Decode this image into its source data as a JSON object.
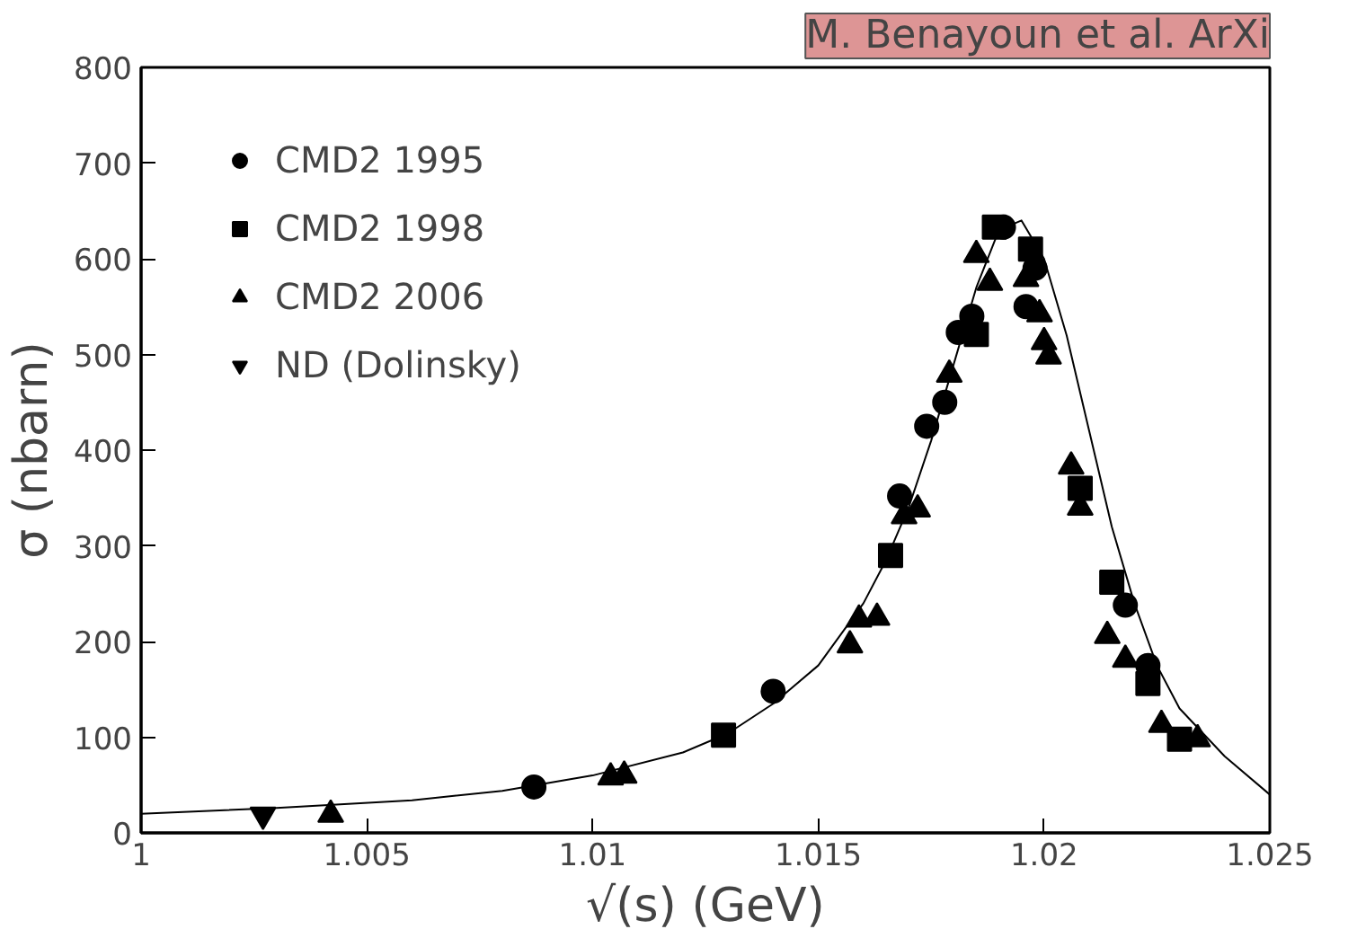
{
  "chart_data": {
    "type": "scatter",
    "title": "M. Benayoun et al. ArXi",
    "xlabel": "√(s) (GeV)",
    "ylabel": "σ (nbarn)",
    "xlim": [
      1,
      1.025
    ],
    "xticks": [
      1,
      1.005,
      1.01,
      1.015,
      1.02,
      1.025
    ],
    "ylim": [
      0,
      800
    ],
    "yticks": [
      0,
      100,
      200,
      300,
      400,
      500,
      600,
      700,
      800
    ],
    "grid": false,
    "legend": "top left",
    "series": [
      {
        "name": "CMD2 1995",
        "color": "#000000",
        "marker": "circle",
        "x": [
          1.0087,
          1.014,
          1.0168,
          1.0218,
          1.0223,
          1.0174,
          1.0178,
          1.0181,
          1.0184,
          1.0191,
          1.0196,
          1.0198
        ],
        "values": [
          48,
          148,
          352,
          238,
          175,
          425,
          450,
          523,
          540,
          633,
          550,
          590
        ]
      },
      {
        "name": "CMD2 1998",
        "color": "#000000",
        "marker": "square",
        "x": [
          1.0129,
          1.0166,
          1.0185,
          1.0189,
          1.0197,
          1.0208,
          1.0215,
          1.0223,
          1.023
        ],
        "values": [
          102,
          290,
          521,
          633,
          610,
          360,
          262,
          156,
          98
        ]
      },
      {
        "name": "CMD2 2006",
        "color": "#000000",
        "marker": "triangle",
        "x": [
          1.0042,
          1.0104,
          1.0107,
          1.0157,
          1.0159,
          1.0163,
          1.0169,
          1.0172,
          1.0179,
          1.0185,
          1.0188,
          1.0196,
          1.0199,
          1.02,
          1.0201,
          1.0206,
          1.0208,
          1.0214,
          1.0218,
          1.0226,
          1.0234
        ],
        "values": [
          19,
          58,
          60,
          196,
          223,
          225,
          331,
          338,
          479,
          604,
          575,
          579,
          542,
          513,
          498,
          383,
          340,
          206,
          181,
          113,
          98
        ]
      },
      {
        "name": "ND (Dolinsky)",
        "color": "#000000",
        "marker": "triangle_down",
        "x": [
          1.0027
        ],
        "values": [
          19
        ]
      },
      {
        "type": "line",
        "color": "#000000",
        "line_style": "solid",
        "x": [
          1.0,
          1.003,
          1.006,
          1.008,
          1.01,
          1.012,
          1.013,
          1.014,
          1.015,
          1.016,
          1.0165,
          1.017,
          1.0175,
          1.018,
          1.0185,
          1.019,
          1.0195,
          1.02,
          1.0205,
          1.021,
          1.0215,
          1.022,
          1.0225,
          1.023,
          1.024,
          1.025
        ],
        "values": [
          20,
          26,
          34,
          44,
          60,
          84,
          104,
          135,
          175,
          240,
          285,
          340,
          410,
          490,
          570,
          630,
          640,
          600,
          520,
          420,
          320,
          240,
          175,
          130,
          80,
          40
        ]
      }
    ]
  }
}
